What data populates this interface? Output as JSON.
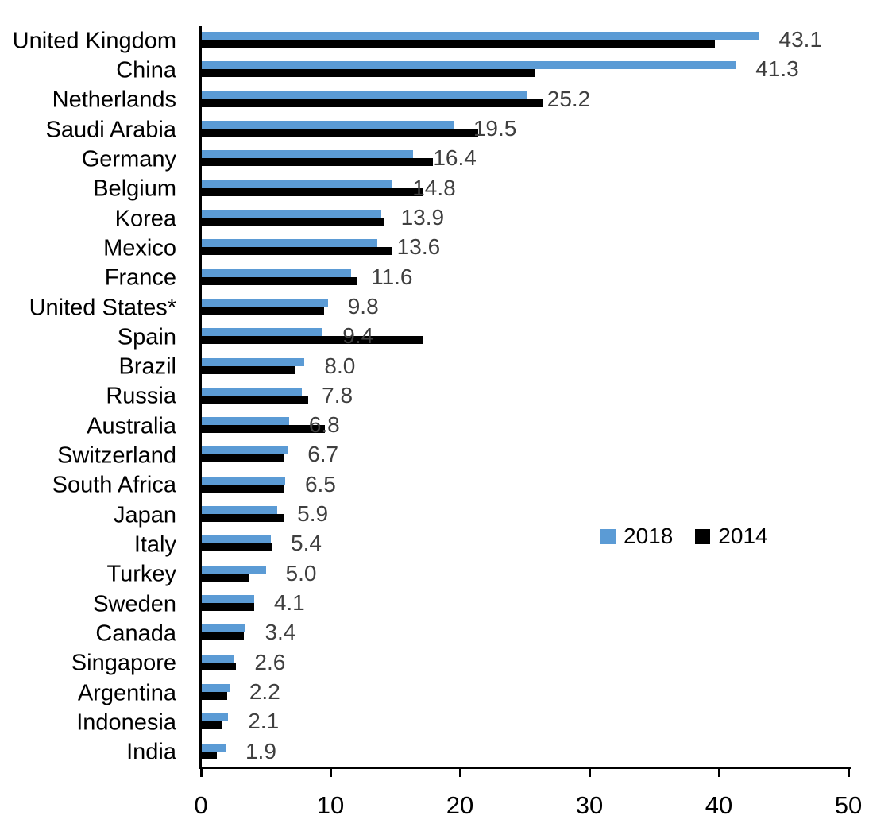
{
  "colors": {
    "bar_2018": "#5B9BD5",
    "bar_2014": "#000000",
    "value_label": "#3F3F3F",
    "axis": "#000000",
    "category_label": "#000000",
    "tick_label": "#000000",
    "background": "#FFFFFF"
  },
  "chart_data": {
    "type": "bar",
    "orientation": "horizontal",
    "title": "",
    "xlabel": "",
    "ylabel": "",
    "grid": false,
    "xlim": [
      0,
      50
    ],
    "x_ticks": [
      0,
      10,
      20,
      30,
      40,
      50
    ],
    "x_tick_labels": [
      "0",
      "10",
      "20",
      "30",
      "40",
      "50"
    ],
    "categories": [
      "United Kingdom",
      "China",
      "Netherlands",
      "Saudi Arabia",
      "Germany",
      "Belgium",
      "Korea",
      "Mexico",
      "France",
      "United States*",
      "Spain",
      "Brazil",
      "Russia",
      "Australia",
      "Switzerland",
      "South Africa",
      "Japan",
      "Italy",
      "Turkey",
      "Sweden",
      "Canada",
      "Singapore",
      "Argentina",
      "Indonesia",
      "India"
    ],
    "series": [
      {
        "name": "2018",
        "color": "#5B9BD5",
        "values": [
          43.1,
          41.3,
          25.2,
          19.5,
          16.4,
          14.8,
          13.9,
          13.6,
          11.6,
          9.8,
          9.4,
          8.0,
          7.8,
          6.8,
          6.7,
          6.5,
          5.9,
          5.4,
          5.0,
          4.1,
          3.4,
          2.6,
          2.2,
          2.1,
          1.9
        ]
      },
      {
        "name": "2014",
        "color": "#000000",
        "values": [
          39.7,
          25.8,
          26.4,
          21.4,
          17.9,
          17.2,
          14.2,
          14.8,
          12.1,
          9.5,
          17.2,
          7.3,
          8.3,
          9.6,
          6.4,
          6.4,
          6.4,
          5.5,
          3.7,
          4.1,
          3.3,
          2.7,
          2.0,
          1.6,
          1.2
        ]
      }
    ],
    "data_labels": [
      "43.1",
      "41.3",
      "25.2",
      "19.5",
      "16.4",
      "14.8",
      "13.9",
      "13.6",
      "11.6",
      "9.8",
      "9.4",
      "8.0",
      "7.8",
      "6.8",
      "6.7",
      "6.5",
      "5.9",
      "5.4",
      "5.0",
      "4.1",
      "3.4",
      "2.6",
      "2.2",
      "2.1",
      "1.9"
    ],
    "data_label_series": "2018",
    "legend": {
      "position": "middle-right",
      "items": [
        {
          "label": "2018",
          "color": "#5B9BD5"
        },
        {
          "label": "2014",
          "color": "#000000"
        }
      ]
    }
  }
}
